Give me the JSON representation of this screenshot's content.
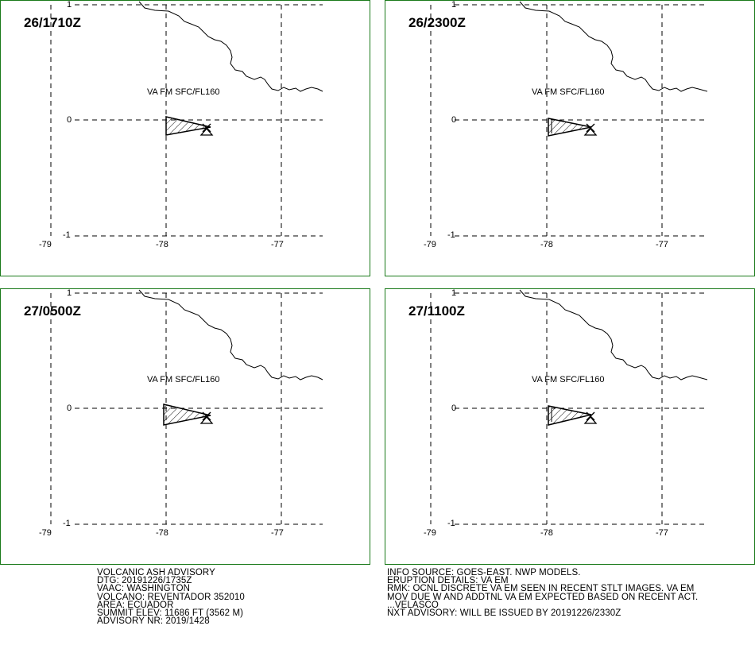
{
  "panels": [
    {
      "time": "26/1710Z",
      "layer_label": "VA FM SFC/FL160"
    },
    {
      "time": "26/2300Z",
      "layer_label": "VA FM SFC/FL160"
    },
    {
      "time": "27/0500Z",
      "layer_label": "VA FM SFC/FL160"
    },
    {
      "time": "27/1100Z",
      "layer_label": "VA FM SFC/FL160"
    }
  ],
  "axis": {
    "lon_ticks": [
      "-79",
      "-78",
      "-77"
    ],
    "lat_ticks": [
      "1",
      "0",
      "-1"
    ],
    "lon_range": [
      -79,
      -76.6
    ],
    "lat_range": [
      -1,
      1
    ]
  },
  "colors": {
    "frame": "#1a7a1a",
    "lines": "#000000",
    "background": "#ffffff"
  },
  "advisory_left": [
    "VOLCANIC ASH ADVISORY",
    "DTG: 20191226/1735Z",
    "VAAC: WASHINGTON",
    "VOLCANO: REVENTADOR 352010",
    "AREA: ECUADOR",
    "SUMMIT ELEV: 11686 FT (3562 M)",
    "ADVISORY NR: 2019/1428"
  ],
  "advisory_right": [
    "INFO SOURCE: GOES-EAST. NWP MODELS.",
    "ERUPTION DETAILS: VA EM",
    "RMK: OCNL DISCRETE VA EM SEEN IN RECENT STLT IMAGES. VA EM",
    "MOV DUE W AND ADDTNL VA EM EXPECTED BASED ON RECENT ACT.",
    "...VELASCO",
    "NXT ADVISORY: WILL BE ISSUED BY 20191226/2330Z"
  ]
}
